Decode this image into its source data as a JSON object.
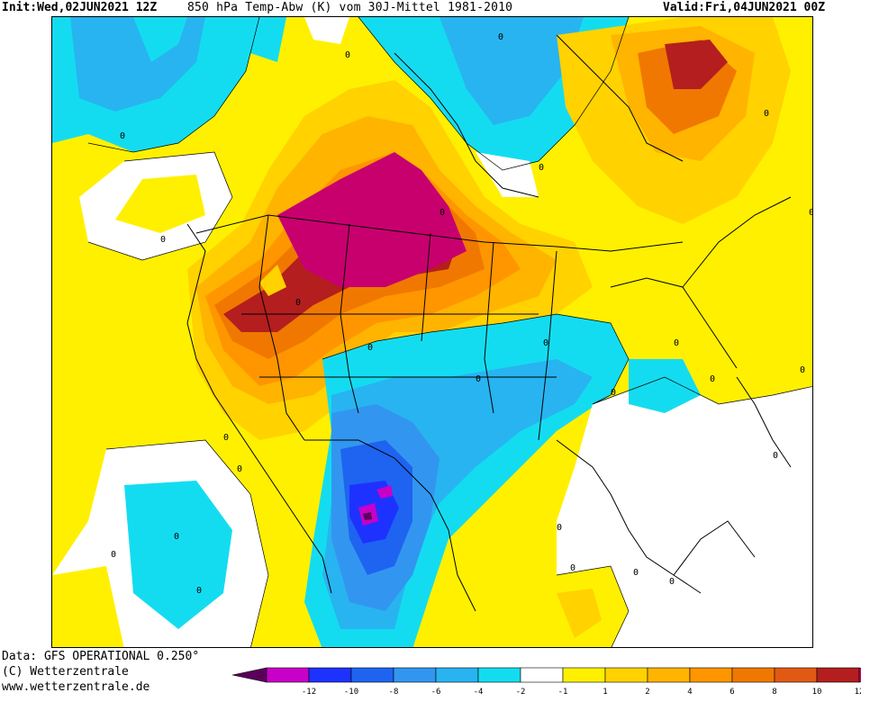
{
  "header": {
    "init_label": "Init:",
    "init_value": "Wed,02JUN2021 12Z",
    "title": "850 hPa Temp-Abw (K) vom 30J-Mittel 1981-2010",
    "valid_label": "Valid:",
    "valid_value": "Fri,04JUN2021 00Z"
  },
  "footer": {
    "data_line": "Data: GFS OPERATIONAL 0.250°",
    "copyright": "(C) Wetterzentrale",
    "url": "www.wetterzentrale.de"
  },
  "map": {
    "contour_labels": [
      "0",
      "0",
      "0",
      "0",
      "0",
      "0",
      "0",
      "0",
      "0",
      "0",
      "0",
      "0",
      "0",
      "0",
      "0",
      "0",
      "0",
      "0",
      "0",
      "0",
      "0",
      "0",
      "0",
      "0",
      "0",
      "0"
    ]
  },
  "colorbar": {
    "ticks": [
      "-12",
      "-10",
      "-8",
      "-6",
      "-4",
      "-2",
      "-1",
      "1",
      "2",
      "4",
      "6",
      "8",
      "10",
      "12"
    ],
    "colors": [
      "#5a005a",
      "#c800c8",
      "#1e32ff",
      "#1e64f0",
      "#3296f0",
      "#28b4f0",
      "#14dcf0",
      "#ffffff",
      "#fff000",
      "#ffd200",
      "#ffb400",
      "#ff9600",
      "#f07800",
      "#e15a14",
      "#b41e1e",
      "#c8006e"
    ],
    "below_color": "#5a005a",
    "above_color": "#c8006e"
  }
}
